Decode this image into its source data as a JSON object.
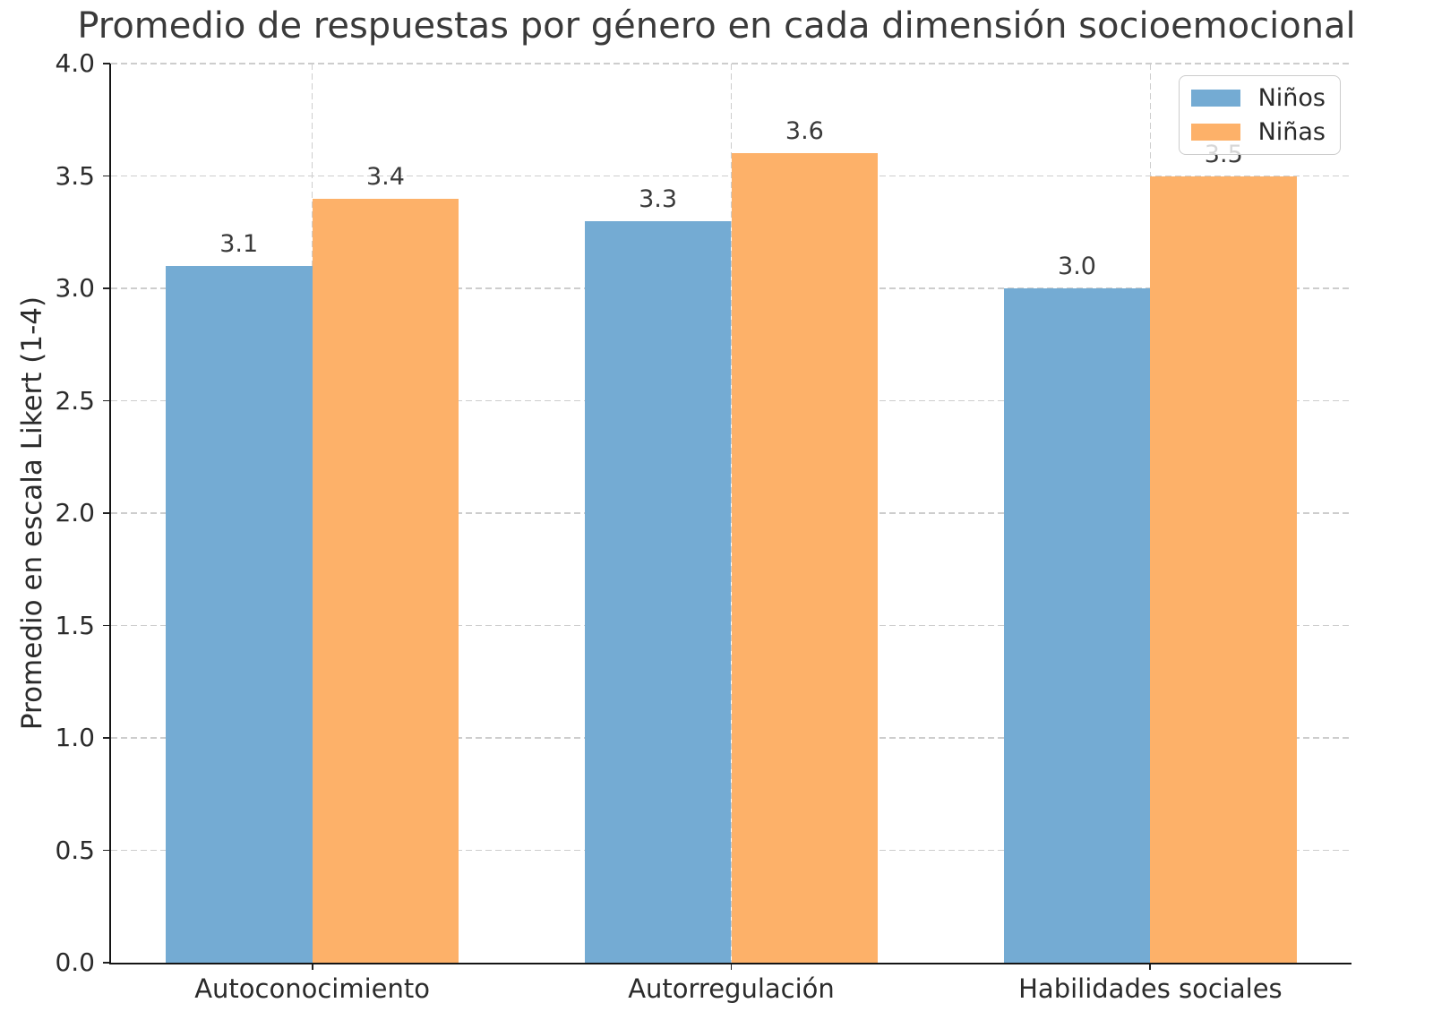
{
  "chart_data": {
    "type": "bar",
    "title": "Promedio de respuestas por género en cada dimensión socioemocional",
    "xlabel": "",
    "ylabel": "Promedio en escala Likert (1-4)",
    "categories": [
      "Autoconocimiento",
      "Autorregulación",
      "Habilidades sociales"
    ],
    "series": [
      {
        "name": "Niños",
        "color": "#74abd3",
        "values": [
          3.1,
          3.3,
          3.0
        ]
      },
      {
        "name": "Niñas",
        "color": "#fdb169",
        "values": [
          3.4,
          3.6,
          3.5
        ]
      }
    ],
    "ylim": [
      0.0,
      4.0
    ],
    "xlim": [
      -0.48,
      2.48
    ],
    "ytick_step": 0.5,
    "bar_width": 0.35,
    "value_labels": [
      "3.1",
      "3.3",
      "3.0",
      "3.4",
      "3.6",
      "3.5"
    ],
    "ytick_labels": [
      "0.0",
      "0.5",
      "1.0",
      "1.5",
      "2.0",
      "2.5",
      "3.0",
      "3.5",
      "4.0"
    ],
    "grid": "both-dashed",
    "legend_position": "upper right",
    "colors": {
      "grid": "#cdcdcd",
      "spine": "#151515",
      "text": "#2b2b2b",
      "title_text": "#3a3a3a",
      "legend_border": "#cccccc",
      "legend_bg": "rgba(255,255,255,0.8)"
    }
  }
}
